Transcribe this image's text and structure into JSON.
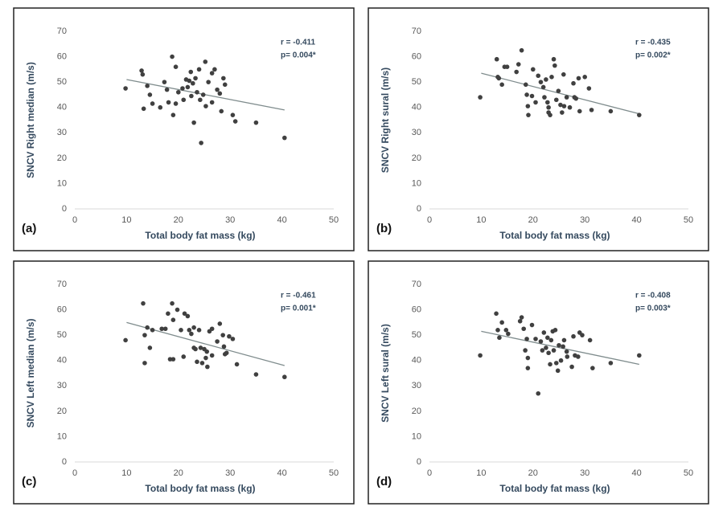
{
  "chart_data": [
    {
      "type": "scatter",
      "panel_label": "(a)",
      "x_label": "Total body fat mass (kg)",
      "y_label": "SNCV Right median (m/s)",
      "annotations": [
        "r = -0.411",
        "p= 0.004*"
      ],
      "color": "#404040",
      "trendline_color": "#7f8c8d",
      "xlim": [
        0,
        50
      ],
      "xticks": [
        0,
        10,
        20,
        30,
        40,
        50
      ],
      "ylim": [
        0,
        70
      ],
      "yticks": [
        0,
        10,
        20,
        30,
        40,
        50,
        60,
        70
      ],
      "x": [
        9.8,
        12.9,
        13.1,
        13.3,
        14,
        14.5,
        15,
        16.5,
        17.3,
        17.8,
        18.1,
        18.8,
        19,
        19.5,
        19.5,
        20,
        20.8,
        21,
        21.5,
        21.8,
        22.1,
        22.4,
        22.5,
        22.8,
        23,
        23.3,
        23.6,
        24,
        24.2,
        24.4,
        24.8,
        25.2,
        25.3,
        25.8,
        26.5,
        26.5,
        27,
        27.5,
        28,
        28.3,
        28.7,
        29,
        30.5,
        31,
        35,
        40.5
      ],
      "values": [
        47.5,
        54.5,
        53,
        39.5,
        48.5,
        45,
        41.5,
        40,
        50,
        47,
        42,
        60,
        37,
        56,
        41.5,
        46,
        47.5,
        43,
        51,
        48,
        50.5,
        54,
        44.5,
        49.5,
        34,
        51.5,
        46,
        55,
        43,
        26,
        45,
        58,
        40.5,
        50,
        53.5,
        42,
        55,
        47,
        45.5,
        38.5,
        51.5,
        49,
        37,
        34.5,
        34,
        28
      ],
      "trendline": {
        "x": [
          10,
          40.5
        ],
        "y": [
          51,
          39
        ]
      }
    },
    {
      "type": "scatter",
      "panel_label": "(b)",
      "x_label": "Total body fat mass (kg)",
      "y_label": "SNCV Right sural (m/s)",
      "annotations": [
        "r = -0.435",
        "p= 0.002*"
      ],
      "color": "#404040",
      "trendline_color": "#7f8c8d",
      "xlim": [
        0,
        50
      ],
      "xticks": [
        0,
        10,
        20,
        30,
        40,
        50
      ],
      "ylim": [
        0,
        70
      ],
      "yticks": [
        0,
        10,
        20,
        30,
        40,
        50,
        60,
        70
      ],
      "x": [
        9.8,
        13,
        13.2,
        13.4,
        14,
        14.5,
        15,
        16.8,
        17.2,
        17.8,
        18.6,
        18.8,
        19,
        19.1,
        19.8,
        20,
        20.5,
        21,
        21.5,
        22,
        22.2,
        22.5,
        22.8,
        23,
        23,
        23.3,
        23.6,
        24,
        24.2,
        24.5,
        24.9,
        25.3,
        25.6,
        25.9,
        26,
        26.5,
        27.1,
        27.8,
        28,
        28.3,
        28.8,
        29,
        30,
        30.8,
        31.3,
        35,
        40.5
      ],
      "values": [
        44,
        59,
        52,
        51.5,
        49,
        56,
        56,
        54,
        57,
        62.5,
        49,
        45,
        40.5,
        37,
        44.5,
        55,
        42,
        52.5,
        50,
        48,
        44,
        51,
        42,
        38,
        40,
        37,
        52,
        59,
        56.5,
        43,
        46.5,
        41,
        38,
        53,
        40.5,
        44,
        40,
        49.5,
        44,
        43.5,
        51.5,
        38.5,
        52,
        47.5,
        39,
        38.5,
        37
      ],
      "trendline": {
        "x": [
          10,
          40.5
        ],
        "y": [
          53.5,
          37.5
        ]
      }
    },
    {
      "type": "scatter",
      "panel_label": "(c)",
      "x_label": "Total body fat mass (kg)",
      "y_label": "SNCV Left median (m/s)",
      "annotations": [
        "r = -0.461",
        "p= 0.001*"
      ],
      "color": "#404040",
      "trendline_color": "#7f8c8d",
      "xlim": [
        0,
        50
      ],
      "xticks": [
        0,
        10,
        20,
        30,
        40,
        50
      ],
      "ylim": [
        0,
        70
      ],
      "yticks": [
        0,
        10,
        20,
        30,
        40,
        50,
        60,
        70
      ],
      "x": [
        9.8,
        13.2,
        13.5,
        13.5,
        14,
        14.5,
        15,
        16.8,
        17.5,
        18,
        18.4,
        18.8,
        19,
        19,
        19.8,
        20.5,
        21,
        21.2,
        21.8,
        22.1,
        22.5,
        23,
        23,
        23.3,
        23.6,
        24,
        24.3,
        24.6,
        25,
        25.3,
        25.5,
        25.6,
        26,
        26.5,
        26.5,
        27.5,
        28,
        28.6,
        28.8,
        29,
        29.3,
        29.8,
        30.5,
        31.3,
        35,
        40.5
      ],
      "values": [
        48,
        62.5,
        50,
        39,
        53,
        45,
        52,
        52.5,
        52.5,
        58.5,
        40.5,
        62.5,
        40.5,
        56,
        60,
        52,
        41.5,
        58.5,
        57.5,
        52,
        50.5,
        53,
        45,
        44.5,
        39.5,
        52,
        45,
        39,
        44.5,
        41,
        43.5,
        37.5,
        51.5,
        52.5,
        42,
        47.5,
        54.5,
        50,
        45.5,
        42.5,
        43,
        49.5,
        48.5,
        38.5,
        34.5,
        33.5
      ],
      "trendline": {
        "x": [
          10,
          40.5
        ],
        "y": [
          55,
          38
        ]
      }
    },
    {
      "type": "scatter",
      "panel_label": "(d)",
      "x_label": "Total body fat mass (kg)",
      "y_label": "SNCV Left sural (m/s)",
      "annotations": [
        "r = -0.408",
        "p= 0.003*"
      ],
      "color": "#404040",
      "trendline_color": "#7f8c8d",
      "xlim": [
        0,
        50
      ],
      "xticks": [
        0,
        10,
        20,
        30,
        40,
        50
      ],
      "ylim": [
        0,
        70
      ],
      "yticks": [
        0,
        10,
        20,
        30,
        40,
        50,
        60,
        70
      ],
      "x": [
        9.8,
        12.9,
        13.2,
        13.5,
        14,
        14.8,
        15.2,
        17.5,
        17.8,
        18.2,
        18.5,
        18.8,
        19,
        19,
        19.8,
        20.5,
        21,
        21.5,
        21.8,
        22.1,
        22.5,
        22.8,
        23,
        23.3,
        23.5,
        23.8,
        24,
        24.3,
        24.5,
        24.8,
        25,
        25.4,
        25.8,
        26,
        26.5,
        26.6,
        27.5,
        27.8,
        28.1,
        28.7,
        29,
        29.5,
        31,
        31.5,
        35,
        40.5
      ],
      "values": [
        42,
        58.5,
        52,
        49,
        55,
        52,
        50.5,
        55.5,
        57,
        52.5,
        44,
        48.5,
        37,
        41,
        54,
        48.5,
        27,
        47.5,
        44,
        51,
        45,
        49,
        43,
        38.5,
        48,
        51.5,
        44,
        52,
        39,
        36,
        46,
        40,
        45.5,
        48,
        43.5,
        41.5,
        37.5,
        49.5,
        42,
        41.5,
        51,
        50,
        48,
        37,
        39,
        42
      ],
      "trendline": {
        "x": [
          10,
          40.5
        ],
        "y": [
          51.5,
          38.5
        ]
      }
    }
  ]
}
